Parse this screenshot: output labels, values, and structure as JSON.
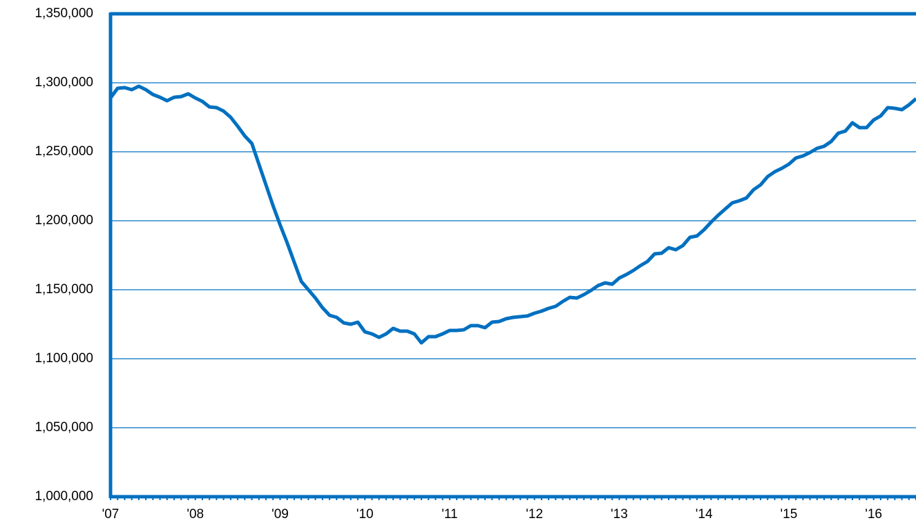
{
  "chart_data": {
    "type": "line",
    "categories": [
      "'07",
      null,
      null,
      null,
      null,
      null,
      null,
      null,
      null,
      null,
      null,
      null,
      "'08",
      null,
      null,
      null,
      null,
      null,
      null,
      null,
      null,
      null,
      null,
      null,
      "'09",
      null,
      null,
      null,
      null,
      null,
      null,
      null,
      null,
      null,
      null,
      null,
      "'10",
      null,
      null,
      null,
      null,
      null,
      null,
      null,
      null,
      null,
      null,
      null,
      "'11",
      null,
      null,
      null,
      null,
      null,
      null,
      null,
      null,
      null,
      null,
      null,
      "'12",
      null,
      null,
      null,
      null,
      null,
      null,
      null,
      null,
      null,
      null,
      null,
      "'13",
      null,
      null,
      null,
      null,
      null,
      null,
      null,
      null,
      null,
      null,
      null,
      "'14",
      null,
      null,
      null,
      null,
      null,
      null,
      null,
      null,
      null,
      null,
      null,
      "'15",
      null,
      null,
      null,
      null,
      null,
      null,
      null,
      null,
      null,
      null,
      null,
      "'16",
      null,
      null,
      null,
      null,
      null,
      null
    ],
    "values": [
      1289000,
      1296000,
      1296500,
      1295000,
      1297500,
      1295000,
      1291500,
      1289500,
      1287000,
      1289500,
      1290000,
      1292000,
      1289000,
      1286500,
      1282500,
      1282000,
      1279500,
      1275000,
      1268500,
      1261500,
      1256000,
      1241000,
      1226000,
      1211000,
      1197000,
      1184000,
      1170000,
      1156000,
      1150000,
      1144000,
      1137000,
      1131500,
      1130000,
      1126000,
      1125000,
      1126500,
      1119500,
      1118000,
      1115500,
      1118000,
      1122000,
      1120000,
      1120000,
      1118000,
      1111500,
      1116000,
      1116000,
      1118000,
      1120500,
      1120500,
      1121000,
      1124000,
      1124000,
      1122500,
      1126500,
      1127000,
      1129000,
      1130000,
      1130500,
      1131000,
      1133000,
      1134500,
      1136500,
      1138000,
      1141500,
      1144500,
      1144000,
      1146500,
      1149500,
      1153000,
      1155000,
      1154000,
      1158500,
      1161000,
      1164000,
      1167500,
      1170500,
      1176000,
      1176500,
      1180500,
      1179000,
      1182000,
      1188000,
      1189000,
      1193500,
      1199000,
      1204000,
      1208500,
      1213000,
      1214500,
      1216500,
      1222500,
      1226000,
      1232000,
      1235500,
      1238000,
      1241000,
      1245500,
      1247000,
      1249500,
      1252500,
      1254000,
      1257500,
      1263500,
      1265000,
      1271000,
      1267500,
      1267500,
      1273000,
      1276000,
      1282000,
      1281500,
      1280500,
      1284000,
      1288500
    ],
    "color": "#0070c0",
    "ylim": [
      1000000,
      1350000
    ],
    "yticks": [
      {
        "value": 1000000,
        "label": "1,000,000"
      },
      {
        "value": 1050000,
        "label": "1,050,000"
      },
      {
        "value": 1100000,
        "label": "1,100,000"
      },
      {
        "value": 1150000,
        "label": "1,150,000"
      },
      {
        "value": 1200000,
        "label": "1,200,000"
      },
      {
        "value": 1250000,
        "label": "1,250,000"
      },
      {
        "value": 1300000,
        "label": "1,300,000"
      },
      {
        "value": 1350000,
        "label": "1,350,000"
      }
    ],
    "grid": true
  }
}
